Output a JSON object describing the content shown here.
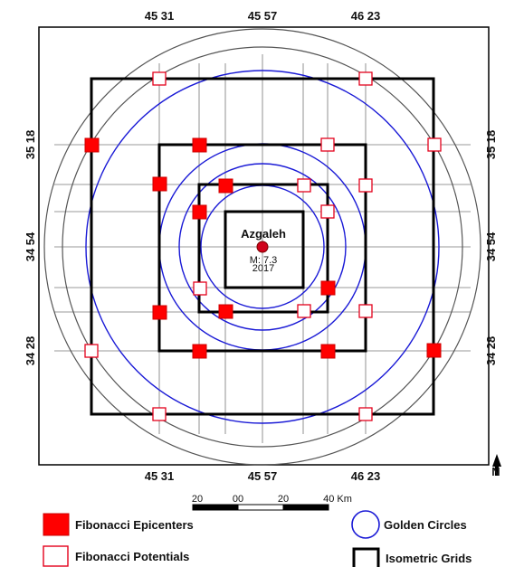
{
  "coordinates": {
    "top": [
      "45 31",
      "45 57",
      "46 23"
    ],
    "bottom": [
      "45 31",
      "45 57",
      "46 23"
    ],
    "left": [
      "35 18",
      "34 54",
      "34 28"
    ],
    "right": [
      "35 18",
      "34 54",
      "34 28"
    ]
  },
  "epicenter": {
    "name": "Azgaleh",
    "magnitude": "M: 7.3",
    "year": "2017",
    "color": "#d0021b"
  },
  "scale_bar": {
    "labels": [
      "20",
      "00",
      "20",
      "40 Km"
    ]
  },
  "north_arrow": {
    "label": "N"
  },
  "legend": {
    "epicenters": "Fibonacci Epicenters",
    "potentials": "Fibonacci Potentials",
    "golden_circles": "Golden Circles",
    "isometric_grids": "Isometric Grids"
  },
  "colors": {
    "epicenter_fill": "#ff0000",
    "potential_stroke": "#e3001b",
    "golden_circle": "#1a1ad6",
    "outer_circle": "#555555",
    "grid": "#000000"
  }
}
